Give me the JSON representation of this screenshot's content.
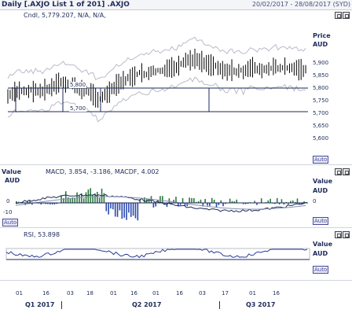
{
  "header": {
    "title": "Daily [.AXJO List 1 of 201] .AXJO",
    "date_range": "20/02/2017 - 28/08/2017 (SYD)"
  },
  "price_panel": {
    "legend": "Cndl, 5,779.207, N/A, N/A,",
    "axis_title": "Price",
    "axis_unit": "AUD",
    "ticks": [
      "5,900",
      "5,850",
      "5,800",
      "5,750",
      "5,700",
      "5,650",
      "5,600"
    ],
    "line_labels": [
      "5,800",
      "5,700"
    ],
    "auto_label": "Auto"
  },
  "macd_panel": {
    "value_label": "Value",
    "unit_label": "AUD",
    "legend": "MACD, 3.854, -3.186, MACDF, 4.002",
    "left_ticks": [
      "0",
      "-10"
    ],
    "right_value_label": "Value",
    "right_unit_label": "AUD",
    "right_tick": "0",
    "auto_left": "Auto",
    "auto_right": "Auto"
  },
  "rsi_panel": {
    "legend": "RSI, 53.898",
    "value_label": "Value",
    "unit_label": "AUD",
    "auto_label": "Auto"
  },
  "x_axis": {
    "days": [
      "01",
      "16",
      "03",
      "18",
      "01",
      "16",
      "01",
      "16",
      "03",
      "17",
      "01",
      "16"
    ],
    "quarters": [
      "Q1 2017",
      "Q2 2017",
      "Q3 2017"
    ]
  }
}
